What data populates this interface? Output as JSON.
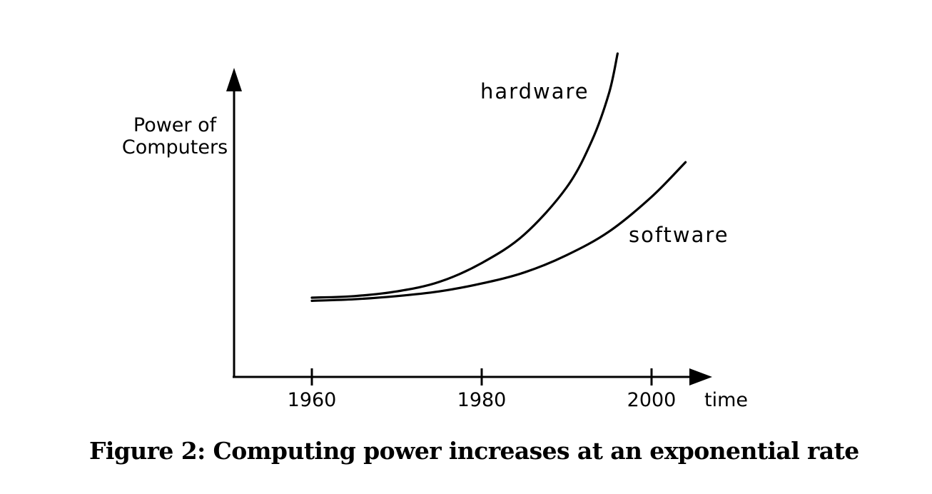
{
  "chart_data": {
    "type": "line",
    "ylabel_line1": "Power of",
    "ylabel_line2": "Computers",
    "xlabel": "time",
    "x_ticks": [
      1960,
      1980,
      2000
    ],
    "xlim": [
      1951,
      2005
    ],
    "grid": false,
    "series": [
      {
        "name": "hardware",
        "x": [
          1960,
          1965,
          1970,
          1975,
          1980,
          1985,
          1990,
          1993,
          1995,
          1996
        ],
        "y": [
          1.0,
          1.1,
          1.4,
          2.0,
          3.2,
          5.0,
          8.0,
          11.0,
          14.0,
          16.5
        ]
      },
      {
        "name": "software",
        "x": [
          1960,
          1965,
          1970,
          1975,
          1980,
          1985,
          1990,
          1995,
          2000,
          2004
        ],
        "y": [
          0.8,
          0.9,
          1.1,
          1.4,
          1.9,
          2.6,
          3.7,
          5.2,
          7.4,
          9.6
        ]
      }
    ]
  },
  "caption": "Figure 2: Computing power increases at an exponential rate"
}
